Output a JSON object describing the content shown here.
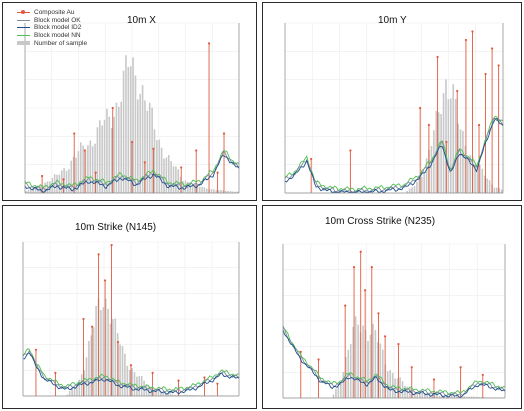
{
  "legend": [
    {
      "label": "Composite Au",
      "color": "#e05a3e",
      "marker": "dot"
    },
    {
      "label": "Block model OK",
      "color": "#7f8f9c",
      "marker": "line"
    },
    {
      "label": "Block model ID2",
      "color": "#1f4f8c",
      "marker": "line"
    },
    {
      "label": "Block model NN",
      "color": "#4fbf4f",
      "marker": "line"
    },
    {
      "label": "Number of sample",
      "color": "#c8c8c8",
      "marker": "bar"
    }
  ],
  "colors": {
    "composite": "#e05a3e",
    "ok": "#7f8f9c",
    "id2": "#1f4f8c",
    "nn": "#4fbf4f",
    "bars": "#c8c8c8",
    "grid": "#ececec"
  },
  "chart_data": [
    {
      "type": "line",
      "title": "10m X",
      "y_range": [
        0,
        1
      ],
      "y2_range": [
        0,
        1
      ],
      "bar_profile": [
        [
          0,
          0.01
        ],
        [
          0.05,
          0.04
        ],
        [
          0.15,
          0.12
        ],
        [
          0.25,
          0.28
        ],
        [
          0.33,
          0.42
        ],
        [
          0.4,
          0.55
        ],
        [
          0.45,
          0.72
        ],
        [
          0.49,
          0.92
        ],
        [
          0.53,
          0.85
        ],
        [
          0.57,
          0.62
        ],
        [
          0.62,
          0.4
        ],
        [
          0.68,
          0.22
        ],
        [
          0.74,
          0.1
        ],
        [
          0.8,
          0.05
        ],
        [
          0.9,
          0.02
        ],
        [
          1,
          0.01
        ]
      ],
      "model_profile": [
        [
          0,
          0.05
        ],
        [
          0.08,
          0.02
        ],
        [
          0.15,
          0.05
        ],
        [
          0.22,
          0.03
        ],
        [
          0.3,
          0.08
        ],
        [
          0.38,
          0.05
        ],
        [
          0.45,
          0.1
        ],
        [
          0.52,
          0.06
        ],
        [
          0.6,
          0.12
        ],
        [
          0.67,
          0.05
        ],
        [
          0.75,
          0.04
        ],
        [
          0.82,
          0.06
        ],
        [
          0.88,
          0.12
        ],
        [
          0.93,
          0.24
        ],
        [
          0.97,
          0.18
        ],
        [
          1,
          0.15
        ]
      ],
      "composite_spikes": [
        [
          0.08,
          0.1
        ],
        [
          0.18,
          0.08
        ],
        [
          0.23,
          0.35
        ],
        [
          0.28,
          0.25
        ],
        [
          0.33,
          0.12
        ],
        [
          0.41,
          0.5
        ],
        [
          0.5,
          0.3
        ],
        [
          0.56,
          0.18
        ],
        [
          0.6,
          0.26
        ],
        [
          0.73,
          0.15
        ],
        [
          0.8,
          0.25
        ],
        [
          0.86,
          0.88
        ],
        [
          0.9,
          0.12
        ],
        [
          0.93,
          0.35
        ]
      ]
    },
    {
      "type": "line",
      "title": "10m Y",
      "y_range": [
        0,
        1
      ],
      "y2_range": [
        0,
        1
      ],
      "bar_profile": [
        [
          0,
          0
        ],
        [
          0.55,
          0
        ],
        [
          0.6,
          0.06
        ],
        [
          0.64,
          0.18
        ],
        [
          0.68,
          0.38
        ],
        [
          0.71,
          0.62
        ],
        [
          0.74,
          0.84
        ],
        [
          0.77,
          0.7
        ],
        [
          0.8,
          0.45
        ],
        [
          0.84,
          0.32
        ],
        [
          0.88,
          0.2
        ],
        [
          0.92,
          0.12
        ],
        [
          0.96,
          0.05
        ],
        [
          1,
          0.02
        ]
      ],
      "model_profile": [
        [
          0,
          0.08
        ],
        [
          0.05,
          0.12
        ],
        [
          0.1,
          0.2
        ],
        [
          0.14,
          0.05
        ],
        [
          0.2,
          0.02
        ],
        [
          0.3,
          0.01
        ],
        [
          0.45,
          0.02
        ],
        [
          0.55,
          0.04
        ],
        [
          0.62,
          0.1
        ],
        [
          0.68,
          0.2
        ],
        [
          0.72,
          0.3
        ],
        [
          0.76,
          0.12
        ],
        [
          0.8,
          0.25
        ],
        [
          0.84,
          0.2
        ],
        [
          0.88,
          0.15
        ],
        [
          0.92,
          0.3
        ],
        [
          0.96,
          0.45
        ],
        [
          1,
          0.4
        ]
      ],
      "composite_spikes": [
        [
          0.12,
          0.2
        ],
        [
          0.3,
          0.25
        ],
        [
          0.62,
          0.5
        ],
        [
          0.66,
          0.4
        ],
        [
          0.7,
          0.8
        ],
        [
          0.74,
          0.3
        ],
        [
          0.79,
          0.6
        ],
        [
          0.83,
          0.9
        ],
        [
          0.86,
          0.95
        ],
        [
          0.89,
          0.4
        ],
        [
          0.92,
          0.7
        ],
        [
          0.95,
          0.85
        ],
        [
          0.98,
          0.75
        ]
      ]
    },
    {
      "type": "line",
      "title": "10m Strike (N145)",
      "y_range": [
        0,
        1
      ],
      "y2_range": [
        0,
        1
      ],
      "bar_profile": [
        [
          0,
          0
        ],
        [
          0.2,
          0
        ],
        [
          0.26,
          0.12
        ],
        [
          0.3,
          0.35
        ],
        [
          0.34,
          0.62
        ],
        [
          0.37,
          0.82
        ],
        [
          0.4,
          0.72
        ],
        [
          0.43,
          0.5
        ],
        [
          0.47,
          0.32
        ],
        [
          0.52,
          0.18
        ],
        [
          0.58,
          0.08
        ],
        [
          0.64,
          0.03
        ],
        [
          0.7,
          0.01
        ],
        [
          1,
          0
        ]
      ],
      "model_profile": [
        [
          0,
          0.25
        ],
        [
          0.03,
          0.3
        ],
        [
          0.06,
          0.2
        ],
        [
          0.1,
          0.12
        ],
        [
          0.15,
          0.08
        ],
        [
          0.2,
          0.05
        ],
        [
          0.26,
          0.08
        ],
        [
          0.32,
          0.1
        ],
        [
          0.38,
          0.12
        ],
        [
          0.44,
          0.08
        ],
        [
          0.5,
          0.06
        ],
        [
          0.56,
          0.05
        ],
        [
          0.62,
          0.04
        ],
        [
          0.7,
          0.03
        ],
        [
          0.78,
          0.05
        ],
        [
          0.86,
          0.1
        ],
        [
          0.92,
          0.15
        ],
        [
          1,
          0.12
        ]
      ],
      "composite_spikes": [
        [
          0.06,
          0.3
        ],
        [
          0.15,
          0.15
        ],
        [
          0.28,
          0.5
        ],
        [
          0.32,
          0.45
        ],
        [
          0.35,
          0.92
        ],
        [
          0.38,
          0.75
        ],
        [
          0.41,
          0.98
        ],
        [
          0.44,
          0.35
        ],
        [
          0.5,
          0.2
        ],
        [
          0.6,
          0.15
        ],
        [
          0.72,
          0.1
        ],
        [
          0.84,
          0.12
        ],
        [
          0.9,
          0.08
        ]
      ]
    },
    {
      "type": "line",
      "title": "10m Cross Strike (N235)",
      "y_range": [
        0,
        1
      ],
      "y2_range": [
        0,
        1
      ],
      "bar_profile": [
        [
          0,
          0
        ],
        [
          0.22,
          0
        ],
        [
          0.26,
          0.15
        ],
        [
          0.3,
          0.4
        ],
        [
          0.34,
          0.62
        ],
        [
          0.38,
          0.55
        ],
        [
          0.42,
          0.48
        ],
        [
          0.46,
          0.3
        ],
        [
          0.5,
          0.18
        ],
        [
          0.55,
          0.1
        ],
        [
          0.6,
          0.05
        ],
        [
          0.7,
          0.02
        ],
        [
          1,
          0
        ]
      ],
      "model_profile": [
        [
          0,
          0.45
        ],
        [
          0.03,
          0.38
        ],
        [
          0.07,
          0.28
        ],
        [
          0.12,
          0.2
        ],
        [
          0.17,
          0.12
        ],
        [
          0.22,
          0.08
        ],
        [
          0.26,
          0.1
        ],
        [
          0.3,
          0.15
        ],
        [
          0.34,
          0.12
        ],
        [
          0.38,
          0.1
        ],
        [
          0.42,
          0.14
        ],
        [
          0.48,
          0.06
        ],
        [
          0.55,
          0.05
        ],
        [
          0.62,
          0.04
        ],
        [
          0.7,
          0.03
        ],
        [
          0.8,
          0.02
        ],
        [
          0.88,
          0.1
        ],
        [
          0.94,
          0.08
        ],
        [
          1,
          0.05
        ]
      ],
      "composite_spikes": [
        [
          0.08,
          0.3
        ],
        [
          0.16,
          0.25
        ],
        [
          0.28,
          0.6
        ],
        [
          0.32,
          0.85
        ],
        [
          0.35,
          0.95
        ],
        [
          0.37,
          0.7
        ],
        [
          0.4,
          0.85
        ],
        [
          0.43,
          0.55
        ],
        [
          0.46,
          0.4
        ],
        [
          0.52,
          0.35
        ],
        [
          0.58,
          0.2
        ],
        [
          0.68,
          0.12
        ],
        [
          0.8,
          0.2
        ],
        [
          0.9,
          0.15
        ]
      ]
    }
  ]
}
